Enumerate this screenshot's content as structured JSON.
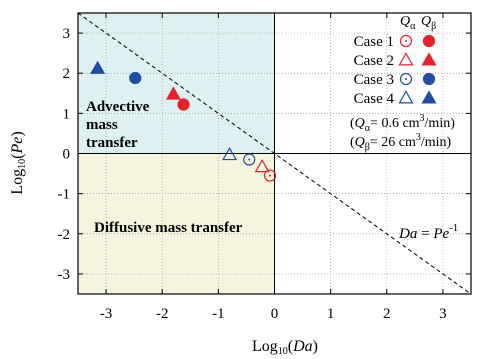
{
  "chart_data": {
    "type": "scatter",
    "xlabel_prefix": "Log",
    "xlabel_sub": "10",
    "xlabel_var": "Da",
    "ylabel_prefix": "Log",
    "ylabel_sub": "10",
    "ylabel_var": "Pe",
    "xlim": [
      -3.5,
      3.5
    ],
    "ylim": [
      -3.5,
      3.5
    ],
    "xticks": [
      -3,
      -2,
      -1,
      0,
      1,
      2,
      3
    ],
    "yticks": [
      -3,
      -2,
      -1,
      0,
      1,
      2,
      3
    ],
    "grid": true,
    "regions": [
      {
        "id": "advective",
        "label_lines": [
          "Advective",
          "mass",
          "transfer"
        ],
        "color": "#ddf1f2"
      },
      {
        "id": "diffusive",
        "label": "Diffusive mass transfer",
        "color": "#f5f4dc"
      }
    ],
    "boundary_line": {
      "label_var1": "Da",
      "label_eq": " = ",
      "label_var2": "Pe",
      "label_sup": "-1",
      "slope": -1,
      "intercept": 0
    },
    "legend": {
      "col_alpha_var": "Q",
      "col_alpha_sub": "α",
      "col_beta_var": "Q",
      "col_beta_sub": "β",
      "note_alpha": {
        "var": "Q",
        "sub": "α",
        "text": "= 0.6 cm",
        "sup": "3",
        "unit": "/min)"
      },
      "note_beta": {
        "var": "Q",
        "sub": "β",
        "text": "= 26 cm",
        "sup": "3",
        "unit": "/min)"
      }
    },
    "series": [
      {
        "name": "Case 1",
        "color": "#e8202a",
        "marker": "circle",
        "alpha_point": [
          -0.08,
          -0.55
        ],
        "beta_point": [
          -1.62,
          1.22
        ]
      },
      {
        "name": "Case 2",
        "color": "#e8202a",
        "marker": "triangle",
        "alpha_point": [
          -0.22,
          -0.33
        ],
        "beta_point": [
          -1.8,
          1.48
        ]
      },
      {
        "name": "Case 3",
        "color": "#1f4ea3",
        "marker": "circle",
        "alpha_point": [
          -0.45,
          -0.15
        ],
        "beta_point": [
          -2.48,
          1.88
        ]
      },
      {
        "name": "Case 4",
        "color": "#1f4ea3",
        "marker": "triangle",
        "alpha_point": [
          -0.8,
          -0.03
        ],
        "beta_point": [
          -3.15,
          2.12
        ]
      }
    ]
  }
}
